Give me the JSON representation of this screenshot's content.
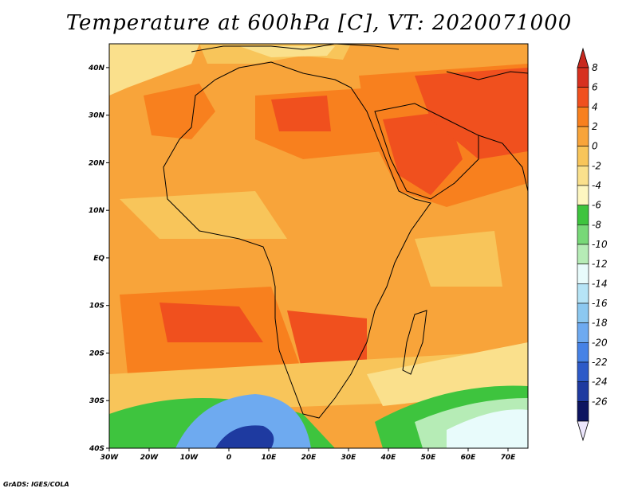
{
  "title": "Temperature at 600hPa [C], VT: 2020071000",
  "credit": "GrADS: IGES/COLA",
  "lon_labels": [
    "30W",
    "20W",
    "10W",
    "0",
    "10E",
    "20E",
    "30E",
    "40E",
    "50E",
    "60E",
    "70E"
  ],
  "lat_labels": [
    "40N",
    "30N",
    "20N",
    "10N",
    "EQ",
    "10S",
    "20S",
    "30S",
    "40S"
  ],
  "colorbar": {
    "labels": [
      "8",
      "6",
      "4",
      "2",
      "0",
      "-2",
      "-4",
      "-6",
      "-8",
      "-10",
      "-12",
      "-14",
      "-16",
      "-18",
      "-20",
      "-22",
      "-24",
      "-26"
    ],
    "colors": [
      "#d7301f",
      "#f0501e",
      "#f8801e",
      "#f8a43a",
      "#f8c55a",
      "#fae08c",
      "#fdf6c0",
      "#3ec43e",
      "#78d878",
      "#b6ecb6",
      "#e8fbfb",
      "#b6e4f6",
      "#8cc8f0",
      "#6eaaf0",
      "#4682e6",
      "#2d5ac8",
      "#1e3aa0",
      "#0c1460"
    ],
    "top_arrow_color": "#c8281e",
    "bottom_arrow_color": "#ece6fc"
  },
  "map_colors": {
    "base": "#f8a43a",
    "hot": "#f0501e",
    "warm": "#f8801e",
    "mild": "#f8c55a",
    "cool": "#fae08c",
    "green": "#3ec43e",
    "lightgreen": "#b6ecb6",
    "cyan": "#e8fbfb",
    "blue": "#6eaaf0",
    "darkblue": "#1e3aa0"
  }
}
